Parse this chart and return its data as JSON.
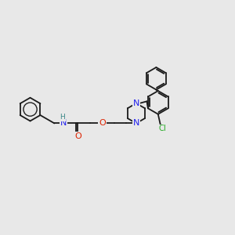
{
  "background_color": "#e8e8e8",
  "bond_color": "#1a1a1a",
  "N_color": "#2020ee",
  "O_color": "#dd2200",
  "H_color": "#3a8888",
  "Cl_color": "#22aa22",
  "bond_lw": 1.3,
  "font_size": 8.0,
  "fig_width": 3.0,
  "fig_height": 3.0,
  "dpi": 100,
  "xlim": [
    0,
    10
  ],
  "ylim": [
    1,
    8
  ]
}
